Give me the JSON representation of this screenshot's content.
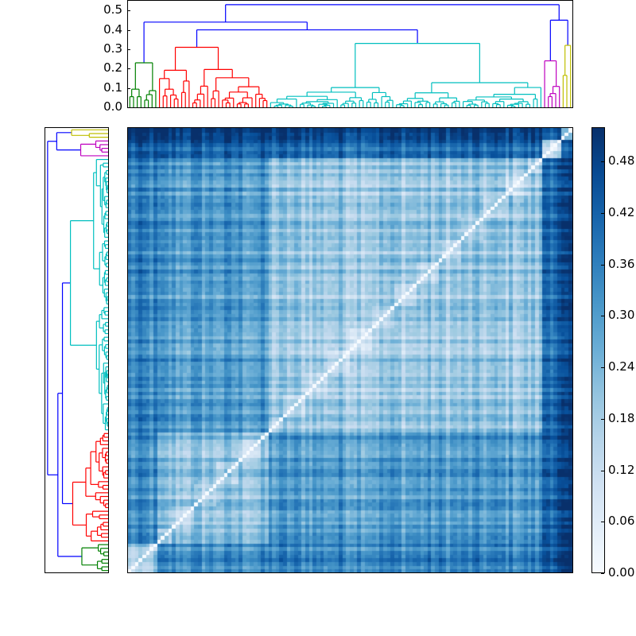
{
  "chart_data": {
    "type": "heatmap",
    "title": "",
    "description": "Hierarchically clustered distance matrix with top and left dendrograms and a Blues colorbar",
    "heatmap": {
      "n_leaves": 120,
      "origin": "lower",
      "diagonal_value": 0.0,
      "colormap": "Blues",
      "vmin": 0.0,
      "vmax": 0.52,
      "clusters": [
        {
          "name": "green",
          "color": "#008000",
          "size": 8,
          "within_distance": 0.17,
          "merge_height": 0.23
        },
        {
          "name": "red",
          "color": "#ff0000",
          "size": 30,
          "within_distance": 0.2,
          "merge_height": 0.31
        },
        {
          "name": "cyan",
          "color": "#00bfbf",
          "size": 74,
          "within_distance": 0.19,
          "merge_height": 0.33
        },
        {
          "name": "magenta",
          "color": "#bf00bf",
          "size": 5,
          "within_distance": 0.18,
          "merge_height": 0.24
        },
        {
          "name": "yellow",
          "color": "#bfbf00",
          "size": 3,
          "within_distance": 0.2,
          "merge_height": 0.32
        }
      ],
      "between_distance": [
        [
          0.0,
          0.32,
          0.34,
          0.45,
          0.46
        ],
        [
          0.32,
          0.0,
          0.3,
          0.44,
          0.45
        ],
        [
          0.34,
          0.3,
          0.0,
          0.43,
          0.44
        ],
        [
          0.45,
          0.44,
          0.43,
          0.0,
          0.4
        ],
        [
          0.46,
          0.45,
          0.44,
          0.4,
          0.0
        ]
      ]
    },
    "top_dendrogram": {
      "ylim": [
        0.0,
        0.55
      ],
      "yticks": [
        "0.0",
        "0.1",
        "0.2",
        "0.3",
        "0.4",
        "0.5"
      ],
      "link_color_above_threshold": "#0000ff",
      "top_links": [
        {
          "join": [
            "green",
            "red+cyan"
          ],
          "height": 0.44
        },
        {
          "join": [
            "red",
            "cyan"
          ],
          "height": 0.4
        },
        {
          "join": [
            "magenta",
            "yellow"
          ],
          "height": 0.45
        },
        {
          "join": [
            "left",
            "right"
          ],
          "height": 0.53
        }
      ]
    },
    "left_dendrogram": {
      "orientation": "left",
      "mirrors_top": true
    },
    "colorbar": {
      "ticks": [
        "0.00",
        "0.06",
        "0.12",
        "0.18",
        "0.24",
        "0.30",
        "0.36",
        "0.42",
        "0.48"
      ],
      "range": [
        0.0,
        0.52
      ],
      "low_color": "#f7fbff",
      "high_color": "#08306b"
    }
  },
  "axes": {
    "top_yticks": [
      "0.0",
      "0.1",
      "0.2",
      "0.3",
      "0.4",
      "0.5"
    ],
    "colorbar_ticks": [
      "0.00",
      "0.06",
      "0.12",
      "0.18",
      "0.24",
      "0.30",
      "0.36",
      "0.42",
      "0.48"
    ]
  }
}
